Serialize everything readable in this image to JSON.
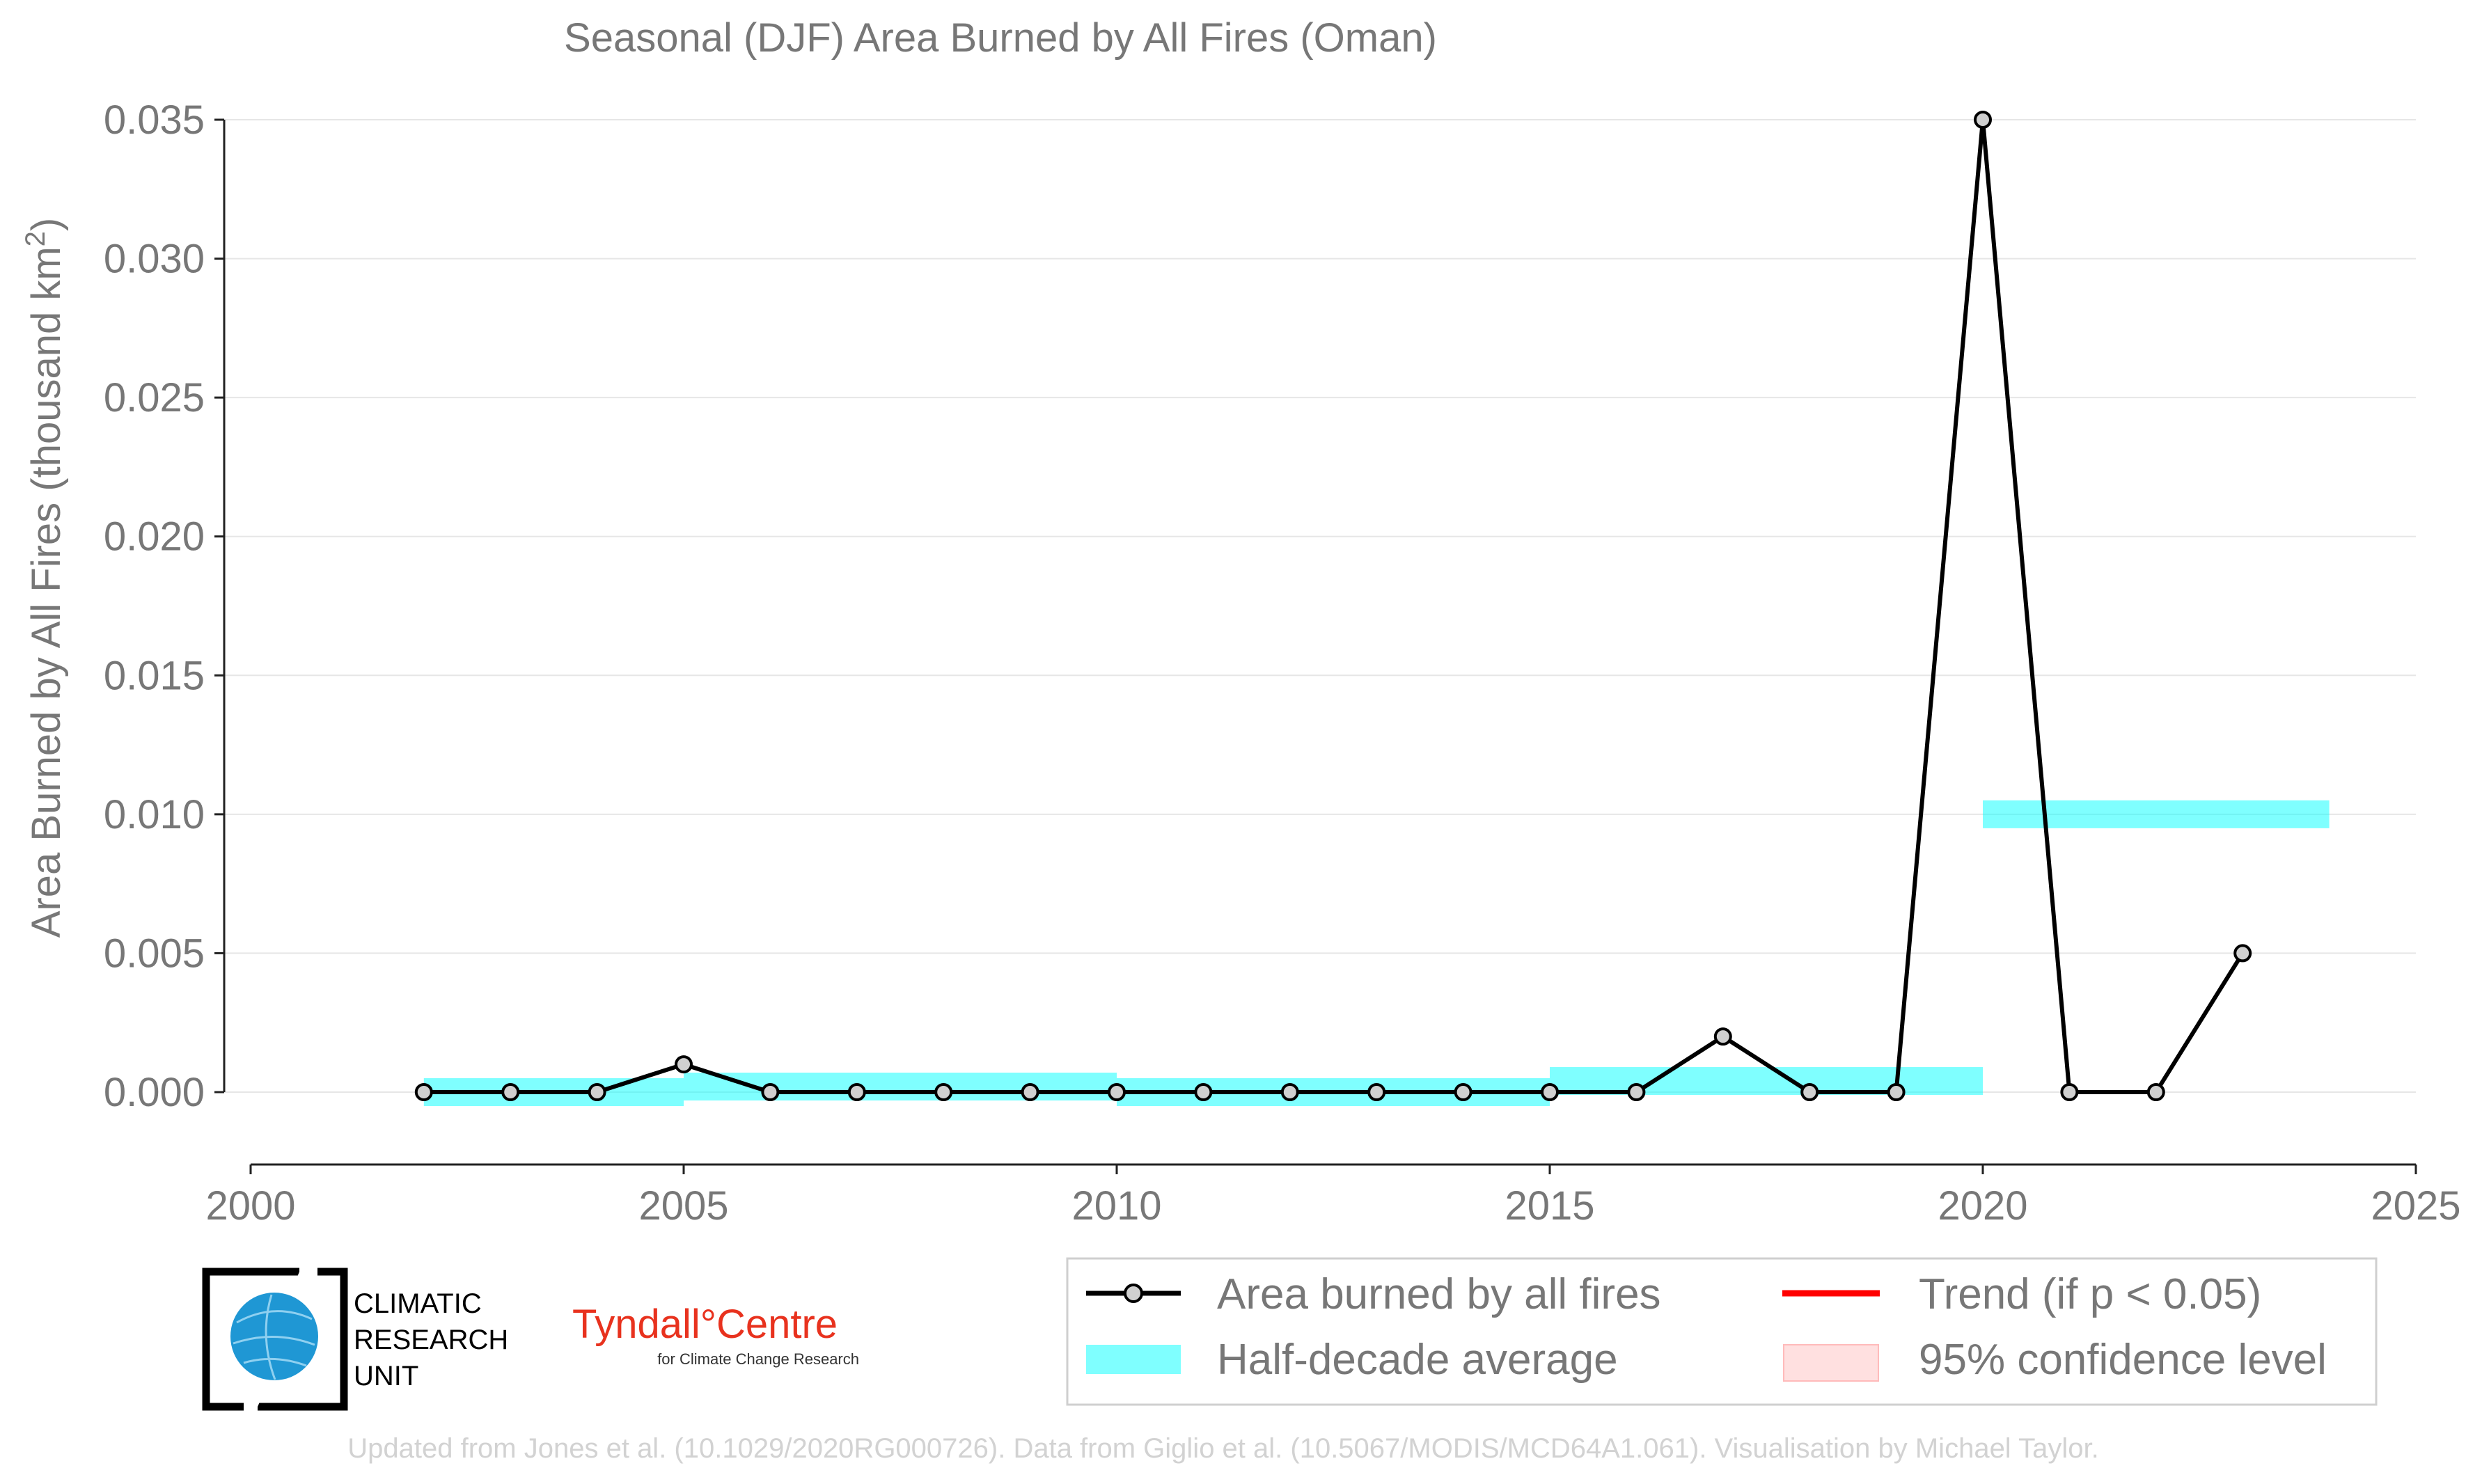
{
  "chart_data": {
    "type": "line",
    "title": "Seasonal (DJF) Area Burned by All Fires (Oman)",
    "ylabel": "Area Burned by All Fires (thousand km²)",
    "xlabel": "",
    "xlim": [
      2000,
      2025
    ],
    "ylim": [
      -0.0025,
      0.035
    ],
    "x_ticks": [
      "2000",
      "2005",
      "2010",
      "2015",
      "2020",
      "2025"
    ],
    "y_ticks": [
      "0.000",
      "0.005",
      "0.010",
      "0.015",
      "0.020",
      "0.025",
      "0.030",
      "0.035"
    ],
    "grid": "horizontal",
    "series": [
      {
        "name": "Area burned by all fires",
        "x": [
          2002,
          2003,
          2004,
          2005,
          2006,
          2007,
          2008,
          2009,
          2010,
          2011,
          2012,
          2013,
          2014,
          2015,
          2016,
          2017,
          2018,
          2019,
          2020,
          2021,
          2022,
          2023
        ],
        "values": [
          0.0,
          0.0,
          0.0,
          0.001,
          0.0,
          0.0,
          0.0,
          0.0,
          0.0,
          0.0,
          0.0,
          0.0,
          0.0,
          0.0,
          0.0,
          0.002,
          0.0,
          0.0,
          0.035,
          0.0,
          0.0,
          0.005
        ],
        "color": "#000000",
        "marker_fill": "#d0d0d0"
      }
    ],
    "half_decade_average": {
      "name": "Half-decade average",
      "color": "#00ffff",
      "segments": [
        {
          "x_start": 2002,
          "x_end": 2005,
          "value": 0.0
        },
        {
          "x_start": 2005,
          "x_end": 2010,
          "value": 0.0002
        },
        {
          "x_start": 2010,
          "x_end": 2015,
          "value": 0.0
        },
        {
          "x_start": 2015,
          "x_end": 2020,
          "value": 0.0004
        },
        {
          "x_start": 2020,
          "x_end": 2024,
          "value": 0.01
        }
      ]
    },
    "legend": {
      "placement": "bottom-right",
      "entries": [
        {
          "label": "Area burned by all fires",
          "kind": "line-marker",
          "color": "#000000"
        },
        {
          "label": "Trend (if p < 0.05)",
          "kind": "line",
          "color": "#ff0000"
        },
        {
          "label": "Half-decade average",
          "kind": "band",
          "color": "#00ffff"
        },
        {
          "label": "95% confidence level",
          "kind": "band",
          "color": "#ffcccc"
        }
      ]
    }
  },
  "logos": {
    "cru_lines": [
      "CLIMATIC",
      "RESEARCH",
      "UNIT"
    ],
    "tyndall_main": "Tyndall°Centre",
    "tyndall_sub": "for Climate Change Research"
  },
  "footer": "Updated from Jones et al. (10.1029/2020RG000726). Data from Giglio et al. (10.5067/MODIS/MCD64A1.061). Visualisation by Michael Taylor."
}
